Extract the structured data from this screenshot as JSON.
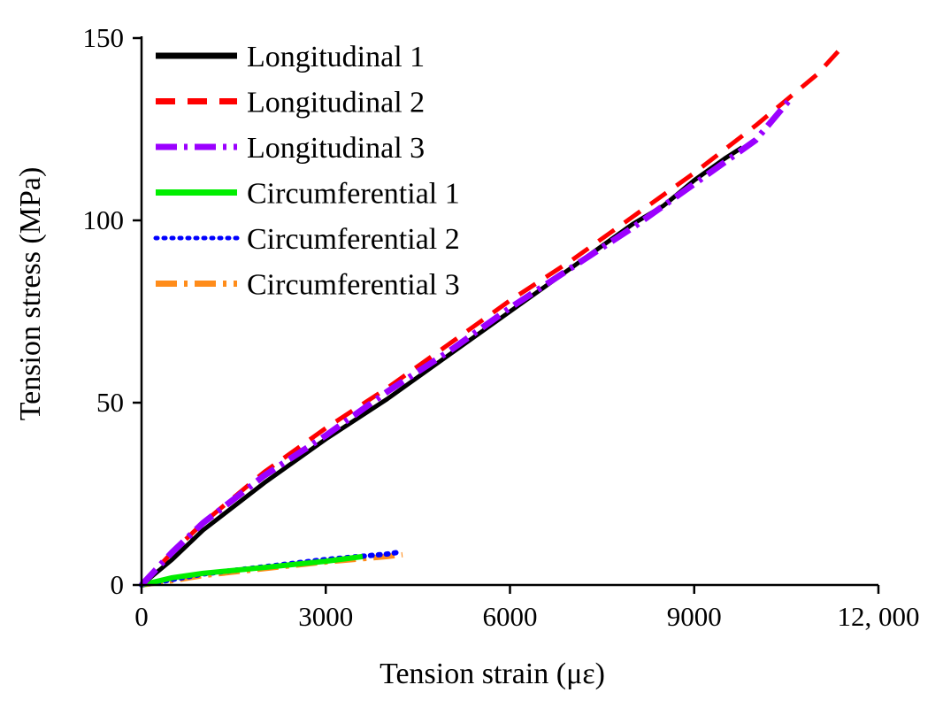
{
  "chart_data": {
    "type": "line",
    "title": "",
    "xlabel": "Tension strain (με)",
    "ylabel": "Tension stress (MPa)",
    "xlim": [
      0,
      12000
    ],
    "ylim": [
      0,
      150
    ],
    "xticks": [
      0,
      3000,
      6000,
      9000,
      12000
    ],
    "xtick_labels": [
      "0",
      "3000",
      "6000",
      "9000",
      "12, 000"
    ],
    "yticks": [
      0,
      50,
      100,
      150
    ],
    "ytick_labels": [
      "0",
      "50",
      "100",
      "150"
    ],
    "grid": false,
    "legend_position": "top-left",
    "series": [
      {
        "name": "Longitudinal 1",
        "color": "#000000",
        "dash": "solid",
        "x": [
          0,
          500,
          1000,
          2000,
          3000,
          4000,
          5000,
          6000,
          7000,
          8000,
          8500,
          9000,
          9500,
          9780
        ],
        "y": [
          0,
          7,
          15,
          28,
          40,
          51,
          63,
          75,
          87,
          99,
          104,
          111,
          117,
          120
        ]
      },
      {
        "name": "Longitudinal 2",
        "color": "#ff0000",
        "dash": "dashed",
        "x": [
          0,
          500,
          1000,
          2000,
          3000,
          4000,
          5000,
          6000,
          7000,
          8000,
          9000,
          10000,
          11000,
          11380
        ],
        "y": [
          0,
          9,
          17,
          31,
          43,
          54,
          66,
          78,
          89,
          101,
          113,
          126,
          140,
          147
        ]
      },
      {
        "name": "Longitudinal 3",
        "color": "#9b00ff",
        "dash": "dashdot",
        "x": [
          0,
          500,
          1000,
          2000,
          3000,
          4000,
          5000,
          6000,
          7000,
          8000,
          9000,
          10000,
          10600
        ],
        "y": [
          0,
          9,
          17,
          30,
          41,
          53,
          64,
          76,
          87,
          98,
          110,
          122,
          134
        ]
      },
      {
        "name": "Circumferential 1",
        "color": "#00ee00",
        "dash": "solid",
        "x": [
          0,
          500,
          1000,
          2000,
          3000,
          3600
        ],
        "y": [
          0,
          2,
          3.2,
          4.8,
          6.5,
          7.8
        ]
      },
      {
        "name": "Circumferential 2",
        "color": "#0000ff",
        "dash": "dotted",
        "x": [
          0,
          500,
          1000,
          2000,
          3000,
          4000,
          4200
        ],
        "y": [
          0,
          1.5,
          3,
          5,
          7,
          8.5,
          9
        ]
      },
      {
        "name": "Circumferential 3",
        "color": "#ff8c1a",
        "dash": "dashdot",
        "x": [
          0,
          500,
          1000,
          2000,
          3000,
          4000,
          4250
        ],
        "y": [
          0,
          1.2,
          2.6,
          4.5,
          6.3,
          7.8,
          8.3
        ]
      }
    ]
  }
}
